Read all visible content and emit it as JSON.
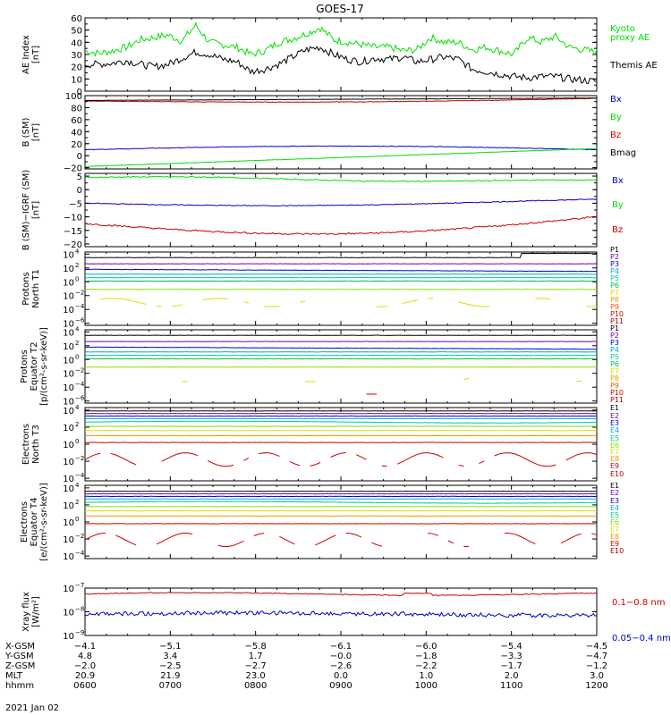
{
  "title": "GOES-17",
  "colors": {
    "black": "#000000",
    "green": "#00e000",
    "blue": "#0000cc",
    "red": "#cc0000",
    "purple": "#7700aa",
    "cyan": "#00aacc",
    "teal": "#00c8a0",
    "lime": "#88dd00",
    "yellow": "#dddd00",
    "orange": "#ee9900"
  },
  "panels": [
    {
      "id": "ae",
      "ylabel": [
        "AE Index",
        "[nT]"
      ],
      "ticks": [
        {
          "v": 0,
          "t": "0"
        },
        {
          "v": 10,
          "t": "10"
        },
        {
          "v": 20,
          "t": "20"
        },
        {
          "v": 30,
          "t": "30"
        },
        {
          "v": 40,
          "t": "40"
        },
        {
          "v": 50,
          "t": "50"
        },
        {
          "v": 60,
          "t": "60"
        }
      ],
      "ylim": [
        0,
        60
      ],
      "log": false,
      "legend": [
        {
          "text": "Kyoto",
          "color": "#00e000",
          "y": 35
        },
        {
          "text": "proxy AE",
          "color": "#00e000",
          "y": 45
        },
        {
          "text": "Themis AE",
          "color": "#000000",
          "y": 76
        }
      ]
    },
    {
      "id": "bsm",
      "ylabel": [
        "B (SM)",
        "[nT]"
      ],
      "ticks": [
        {
          "v": -20,
          "t": "−20"
        },
        {
          "v": 0,
          "t": "0"
        },
        {
          "v": 20,
          "t": "20"
        },
        {
          "v": 40,
          "t": "40"
        },
        {
          "v": 60,
          "t": "60"
        },
        {
          "v": 80,
          "t": "80"
        },
        {
          "v": 100,
          "t": "100"
        }
      ],
      "ylim": [
        -22,
        100
      ],
      "log": false,
      "legend": [
        {
          "text": "Bx",
          "color": "#0000cc",
          "y": 114
        },
        {
          "text": "By",
          "color": "#00e000",
          "y": 134
        },
        {
          "text": "Bz",
          "color": "#cc0000",
          "y": 154
        },
        {
          "text": "Bmag",
          "color": "#000000",
          "y": 174
        }
      ]
    },
    {
      "id": "bigrf",
      "ylabel": [
        "B (SM)−IGRF (SM)",
        "[nT]"
      ],
      "ticks": [
        {
          "v": -20,
          "t": "−20"
        },
        {
          "v": -15,
          "t": "−15"
        },
        {
          "v": -10,
          "t": "−10"
        },
        {
          "v": -5,
          "t": "−5"
        },
        {
          "v": 0,
          "t": "0"
        },
        {
          "v": 5,
          "t": "5"
        }
      ],
      "ylim": [
        -21,
        6
      ],
      "log": false,
      "legend": [
        {
          "text": "Bx",
          "color": "#0000cc",
          "y": 205
        },
        {
          "text": "By",
          "color": "#00e000",
          "y": 232
        },
        {
          "text": "Bz",
          "color": "#cc0000",
          "y": 260
        }
      ]
    },
    {
      "id": "pnorth",
      "ylabel": [
        "Protons",
        "North T1"
      ],
      "ticks": [
        {
          "v": -6,
          "t": "10",
          "e": "−6"
        },
        {
          "v": -4,
          "t": "10",
          "e": "−4"
        },
        {
          "v": -2,
          "t": "10",
          "e": "−2"
        },
        {
          "v": 0,
          "t": "10",
          "e": "0"
        },
        {
          "v": 2,
          "t": "10",
          "e": "2"
        },
        {
          "v": 4,
          "t": "10",
          "e": "4"
        }
      ],
      "ylim": [
        -6.3,
        4.3
      ],
      "log": true,
      "legend": [
        {
          "text": "P1",
          "color": "#000000",
          "y": 282
        },
        {
          "text": "P2",
          "color": "#7700aa",
          "y": 290
        },
        {
          "text": "P3",
          "color": "#0000cc",
          "y": 298
        },
        {
          "text": "P4",
          "color": "#00aacc",
          "y": 306
        },
        {
          "text": "P5",
          "color": "#00c8a0",
          "y": 314
        },
        {
          "text": "P6",
          "color": "#00c040",
          "y": 322
        },
        {
          "text": "P7",
          "color": "#dddd00",
          "y": 330
        },
        {
          "text": "P8",
          "color": "#ee9900",
          "y": 338
        },
        {
          "text": "P9",
          "color": "#ee5500",
          "y": 346
        },
        {
          "text": "P10",
          "color": "#cc0000",
          "y": 354
        },
        {
          "text": "P11",
          "color": "#aa0000",
          "y": 362
        }
      ]
    },
    {
      "id": "pequator",
      "ylabel": [
        "Protons",
        "Equator T2",
        "[p/(cm²-s-sr-keV)]"
      ],
      "ticks": [
        {
          "v": -6,
          "t": "10",
          "e": "−6"
        },
        {
          "v": -4,
          "t": "10",
          "e": "−4"
        },
        {
          "v": -2,
          "t": "10",
          "e": "−2"
        },
        {
          "v": 0,
          "t": "10",
          "e": "0"
        },
        {
          "v": 2,
          "t": "10",
          "e": "2"
        },
        {
          "v": 4,
          "t": "10",
          "e": "4"
        }
      ],
      "ylim": [
        -6.3,
        4.3
      ],
      "log": true,
      "legend": [
        {
          "text": "P1",
          "color": "#000000",
          "y": 370
        },
        {
          "text": "P2",
          "color": "#7700aa",
          "y": 378
        },
        {
          "text": "P3",
          "color": "#0000cc",
          "y": 386
        },
        {
          "text": "P4",
          "color": "#00aacc",
          "y": 394
        },
        {
          "text": "P5",
          "color": "#00c8a0",
          "y": 402
        },
        {
          "text": "P6",
          "color": "#00c040",
          "y": 410
        },
        {
          "text": "P7",
          "color": "#dddd00",
          "y": 418
        },
        {
          "text": "P8",
          "color": "#ee9900",
          "y": 426
        },
        {
          "text": "P9",
          "color": "#ee5500",
          "y": 434
        },
        {
          "text": "P10",
          "color": "#cc0000",
          "y": 442
        },
        {
          "text": "P11",
          "color": "#aa0000",
          "y": 450
        }
      ]
    },
    {
      "id": "enorth",
      "ylabel": [
        "Electrons",
        "North T3"
      ],
      "ticks": [
        {
          "v": -4,
          "t": "10",
          "e": "−4"
        },
        {
          "v": -2,
          "t": "10",
          "e": "−2"
        },
        {
          "v": 0,
          "t": "10",
          "e": "0"
        },
        {
          "v": 2,
          "t": "10",
          "e": "2"
        },
        {
          "v": 4,
          "t": "10",
          "e": "4"
        }
      ],
      "ylim": [
        -4.3,
        4.3
      ],
      "log": true,
      "legend": [
        {
          "text": "E1",
          "color": "#000000",
          "y": 459
        },
        {
          "text": "E2",
          "color": "#7700aa",
          "y": 468
        },
        {
          "text": "E3",
          "color": "#0000cc",
          "y": 476
        },
        {
          "text": "E4",
          "color": "#00aacc",
          "y": 484
        },
        {
          "text": "E5",
          "color": "#00c8a0",
          "y": 493
        },
        {
          "text": "E6",
          "color": "#88dd00",
          "y": 501
        },
        {
          "text": "E7",
          "color": "#dddd00",
          "y": 508
        },
        {
          "text": "E8",
          "color": "#ee9900",
          "y": 516
        },
        {
          "text": "E9",
          "color": "#cc0000",
          "y": 524
        },
        {
          "text": "E10",
          "color": "#aa0000",
          "y": 533
        }
      ]
    },
    {
      "id": "eequator",
      "ylabel": [
        "Electrons",
        "Equator T4",
        "[e/(cm²-s-sr-keV)]"
      ],
      "ticks": [
        {
          "v": -4,
          "t": "10",
          "e": "−4"
        },
        {
          "v": -2,
          "t": "10",
          "e": "−2"
        },
        {
          "v": 0,
          "t": "10",
          "e": "0"
        },
        {
          "v": 2,
          "t": "10",
          "e": "2"
        },
        {
          "v": 4,
          "t": "10",
          "e": "4"
        }
      ],
      "ylim": [
        -4.3,
        4.3
      ],
      "log": true,
      "legend": [
        {
          "text": "E1",
          "color": "#000000",
          "y": 546
        },
        {
          "text": "E2",
          "color": "#7700aa",
          "y": 554
        },
        {
          "text": "E3",
          "color": "#0000cc",
          "y": 563
        },
        {
          "text": "E4",
          "color": "#00aacc",
          "y": 571
        },
        {
          "text": "E5",
          "color": "#00c8a0",
          "y": 579
        },
        {
          "text": "E6",
          "color": "#88dd00",
          "y": 587
        },
        {
          "text": "E7",
          "color": "#dddd00",
          "y": 595
        },
        {
          "text": "E8",
          "color": "#ee9900",
          "y": 603
        },
        {
          "text": "E9",
          "color": "#cc0000",
          "y": 611
        },
        {
          "text": "E10",
          "color": "#aa0000",
          "y": 619
        }
      ]
    },
    {
      "id": "xray",
      "ylabel": [
        "Xray flux",
        "[W/m²]"
      ],
      "ticks": [
        {
          "v": -9,
          "t": "10",
          "e": "−9"
        },
        {
          "v": -8,
          "t": "10",
          "e": "−8"
        },
        {
          "v": -7,
          "t": "10",
          "e": "−7"
        }
      ],
      "ylim": [
        -9,
        -7
      ],
      "log": true,
      "legend": [
        {
          "text": "0.1−0.8 nm",
          "color": "#cc0000",
          "y": 677
        },
        {
          "text": "0.05−0.4 nm",
          "color": "#0000cc",
          "y": 717
        }
      ]
    }
  ],
  "x_axis": {
    "time_labels": [
      "0600",
      "0700",
      "0800",
      "0900",
      "1000",
      "1100",
      "1200"
    ],
    "rows": [
      {
        "label": "X-GSM",
        "values": [
          "−4.1",
          "−5.1",
          "−5.8",
          "−6.1",
          "−6.0",
          "−5.4",
          "−4.5"
        ]
      },
      {
        "label": "Y-GSM",
        "values": [
          "4.8",
          "3.4",
          "1.7",
          "−0.0",
          "−1.8",
          "−3.3",
          "−4.7"
        ]
      },
      {
        "label": "Z-GSM",
        "values": [
          "−2.0",
          "−2.5",
          "−2.7",
          "−2.6",
          "−2.2",
          "−1.7",
          "−1.2"
        ]
      },
      {
        "label": "MLT",
        "values": [
          "20.9",
          "21.9",
          "23.0",
          "0.0",
          "1.0",
          "2.0",
          "3.0"
        ]
      },
      {
        "label": "hhmm",
        "values": [
          "0600",
          "0700",
          "0800",
          "0900",
          "1000",
          "1100",
          "1200"
        ]
      }
    ],
    "date": "2021 Jan 02"
  },
  "chart_data": {
    "type": "line",
    "title": "GOES-17",
    "x_range": [
      "0600",
      "1200"
    ],
    "date": "2021 Jan 02",
    "series_description": "Time series panels",
    "panels": [
      {
        "panel": "AE Index",
        "series": [
          {
            "name": "Kyoto proxy AE",
            "values_at_hours": [
              33,
              31,
              33,
              36,
              42,
              44,
              46,
              41,
              54,
              40,
              38,
              36,
              30,
              33,
              40,
              43,
              47,
              52,
              42,
              40,
              38,
              36,
              36,
              33,
              34,
              44,
              40,
              40,
              34,
              36,
              33,
              30,
              44,
              40,
              45,
              36,
              34,
              32
            ],
            "range": [
              20,
              60
            ]
          },
          {
            "name": "Themis AE",
            "values_at_hours": [
              22,
              22,
              23,
              25,
              22,
              20,
              22,
              27,
              32,
              30,
              26,
              24,
              16,
              18,
              22,
              28,
              34,
              36,
              30,
              26,
              24,
              27,
              26,
              28,
              24,
              26,
              28,
              26,
              18,
              16,
              14,
              12,
              11,
              12,
              12,
              10,
              9,
              8
            ],
            "range": [
              5,
              36
            ]
          }
        ]
      },
      {
        "panel": "B (SM)",
        "series": [
          {
            "name": "Bx",
            "start": 10,
            "end": 16
          },
          {
            "name": "By",
            "start": -18,
            "end": 12
          },
          {
            "name": "Bz",
            "start": 92,
            "end": 97
          },
          {
            "name": "Bmag",
            "start": 93,
            "end": 97
          }
        ]
      },
      {
        "panel": "B (SM)-IGRF (SM)",
        "series": [
          {
            "name": "Bx",
            "start": -5,
            "end": -4
          },
          {
            "name": "By",
            "start": 4.5,
            "end": 3
          },
          {
            "name": "Bz",
            "start": -12,
            "end": -10,
            "min": -18
          }
        ]
      }
    ]
  }
}
